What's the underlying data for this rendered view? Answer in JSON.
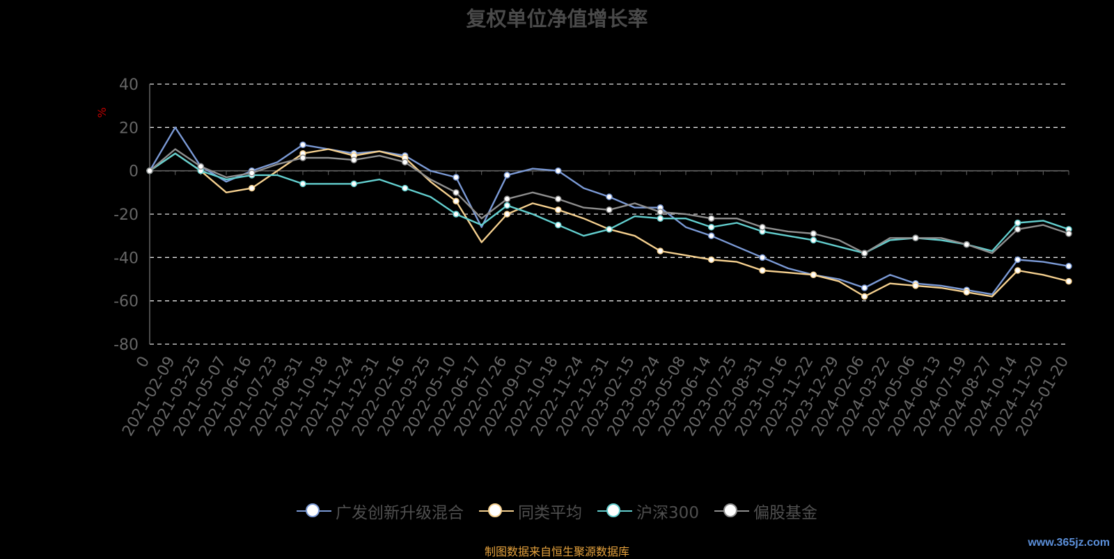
{
  "chart_data": {
    "type": "line",
    "title": "复权单位净值增长率",
    "ylabel": "%",
    "ylim": [
      -80,
      40
    ],
    "yticks": [
      40,
      20,
      0,
      -20,
      -40,
      -60,
      -80
    ],
    "grid": true,
    "legend_position": "bottom",
    "x_ticks": [
      "0",
      "2021-02-09",
      "2021-03-25",
      "2021-05-07",
      "2021-06-16",
      "2021-07-23",
      "2021-08-31",
      "2021-10-18",
      "2021-11-24",
      "2021-12-31",
      "2022-02-16",
      "2022-03-25",
      "2022-05-10",
      "2022-06-17",
      "2022-07-26",
      "2022-09-01",
      "2022-10-18",
      "2022-11-24",
      "2022-12-31",
      "2023-02-15",
      "2023-03-24",
      "2023-05-08",
      "2023-06-14",
      "2023-07-25",
      "2023-08-31",
      "2023-10-16",
      "2023-11-22",
      "2023-12-29",
      "2024-02-06",
      "2024-03-22",
      "2024-05-06",
      "2024-06-13",
      "2024-07-19",
      "2024-08-27",
      "2024-10-14",
      "2024-11-20",
      "2025-01-20"
    ],
    "series": [
      {
        "name": "广发创新升级混合",
        "color": "#7b9ad6",
        "values": [
          0,
          20,
          2,
          -5,
          0,
          4,
          12,
          10,
          8,
          9,
          7,
          0,
          -3,
          -26,
          -2,
          1,
          0,
          -8,
          -12,
          -17,
          -17,
          -26,
          -30,
          -35,
          -40,
          -45,
          -48,
          -50,
          -54,
          -48,
          -52,
          -53,
          -55,
          -57,
          -41,
          -42,
          -44
        ]
      },
      {
        "name": "同类平均",
        "color": "#f5d08f",
        "values": [
          0,
          8,
          0,
          -10,
          -8,
          0,
          8,
          10,
          7,
          9,
          6,
          -5,
          -14,
          -33,
          -20,
          -15,
          -18,
          -22,
          -27,
          -30,
          -37,
          -39,
          -41,
          -42,
          -46,
          -47,
          -48,
          -51,
          -58,
          -52,
          -53,
          -54,
          -56,
          -58,
          -46,
          -48,
          -51
        ]
      },
      {
        "name": "沪深300",
        "color": "#63cfcf",
        "values": [
          0,
          8,
          0,
          -4,
          -2,
          -2,
          -6,
          -6,
          -6,
          -4,
          -8,
          -12,
          -20,
          -25,
          -16,
          -20,
          -25,
          -30,
          -27,
          -21,
          -22,
          -22,
          -26,
          -24,
          -28,
          -30,
          -32,
          -35,
          -38,
          -32,
          -31,
          -32,
          -34,
          -37,
          -24,
          -23,
          -27
        ]
      },
      {
        "name": "偏股基金",
        "color": "#8f8f8f",
        "values": [
          0,
          10,
          2,
          -3,
          -1,
          3,
          6,
          6,
          5,
          7,
          4,
          -4,
          -10,
          -22,
          -13,
          -10,
          -13,
          -17,
          -18,
          -15,
          -19,
          -20,
          -22,
          -22,
          -26,
          -28,
          -29,
          -32,
          -38,
          -31,
          -31,
          -31,
          -34,
          -38,
          -27,
          -25,
          -29
        ]
      }
    ]
  },
  "legend_items": [
    "广发创新升级混合",
    "同类平均",
    "沪深300",
    "偏股基金"
  ],
  "source_note": "制图数据来自恒生聚源数据库",
  "watermark": "www.365jz.com"
}
